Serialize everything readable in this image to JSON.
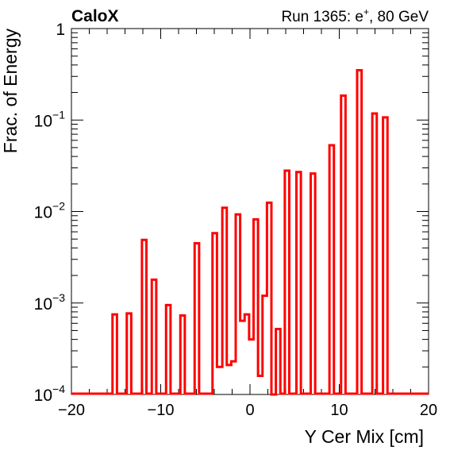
{
  "header": {
    "experiment_label": "CaloX",
    "run_label": "Run 1365: e",
    "run_label_sup": "+",
    "run_label_tail": ", 80 GeV"
  },
  "chart_data": {
    "type": "step-histogram",
    "title": "",
    "xlabel": "Y Cer Mix [cm]",
    "ylabel": "Frac. of Energy",
    "xlim": [
      -20,
      20
    ],
    "ylim": [
      0.0001,
      1
    ],
    "yscale": "log",
    "grid": false,
    "legend": "none",
    "x_ticks": [
      "−20",
      "−10",
      "0",
      "10",
      "20"
    ],
    "x_tick_values": [
      -20,
      -10,
      0,
      10,
      20
    ],
    "y_ticks": [
      {
        "value": 0.0001,
        "base": "10",
        "exp": "−4"
      },
      {
        "value": 0.001,
        "base": "10",
        "exp": "−3"
      },
      {
        "value": 0.01,
        "base": "10",
        "exp": "−2"
      },
      {
        "value": 0.1,
        "base": "10",
        "exp": "−1"
      },
      {
        "value": 1,
        "base": "1",
        "exp": ""
      }
    ],
    "line_color": "#ff0000",
    "bins": [
      {
        "x0": -15.4,
        "x1": -14.9,
        "y": 0.00075
      },
      {
        "x0": -13.8,
        "x1": -13.3,
        "y": 0.00077
      },
      {
        "x0": -12.1,
        "x1": -11.6,
        "y": 0.0049
      },
      {
        "x0": -11.0,
        "x1": -10.5,
        "y": 0.0018
      },
      {
        "x0": -9.4,
        "x1": -8.9,
        "y": 0.00095
      },
      {
        "x0": -7.8,
        "x1": -7.3,
        "y": 0.00073
      },
      {
        "x0": -6.2,
        "x1": -5.7,
        "y": 0.0045
      },
      {
        "x0": -4.2,
        "x1": -3.7,
        "y": 0.0058
      },
      {
        "x0": -3.7,
        "x1": -3.1,
        "y": 0.0002
      },
      {
        "x0": -3.1,
        "x1": -2.6,
        "y": 0.011
      },
      {
        "x0": -2.6,
        "x1": -2.1,
        "y": 0.00021
      },
      {
        "x0": -2.1,
        "x1": -1.6,
        "y": 0.00023
      },
      {
        "x0": -1.6,
        "x1": -1.1,
        "y": 0.0093
      },
      {
        "x0": -1.1,
        "x1": -0.6,
        "y": 0.00064
      },
      {
        "x0": -0.6,
        "x1": -0.1,
        "y": 0.00075
      },
      {
        "x0": -0.1,
        "x1": 0.4,
        "y": 0.0004
      },
      {
        "x0": 0.4,
        "x1": 0.9,
        "y": 0.0082
      },
      {
        "x0": 0.9,
        "x1": 1.4,
        "y": 0.00016
      },
      {
        "x0": 1.4,
        "x1": 1.9,
        "y": 0.0012
      },
      {
        "x0": 1.9,
        "x1": 2.4,
        "y": 0.0125
      },
      {
        "x0": 2.4,
        "x1": 2.9,
        "y": 0.0001
      },
      {
        "x0": 2.9,
        "x1": 3.4,
        "y": 0.00052
      },
      {
        "x0": 3.9,
        "x1": 4.4,
        "y": 0.028
      },
      {
        "x0": 5.2,
        "x1": 5.7,
        "y": 0.027
      },
      {
        "x0": 6.8,
        "x1": 7.3,
        "y": 0.026
      },
      {
        "x0": 8.9,
        "x1": 9.4,
        "y": 0.053
      },
      {
        "x0": 10.2,
        "x1": 10.7,
        "y": 0.185
      },
      {
        "x0": 12.0,
        "x1": 12.5,
        "y": 0.35
      },
      {
        "x0": 13.7,
        "x1": 14.2,
        "y": 0.118
      },
      {
        "x0": 14.9,
        "x1": 15.4,
        "y": 0.107
      }
    ]
  }
}
